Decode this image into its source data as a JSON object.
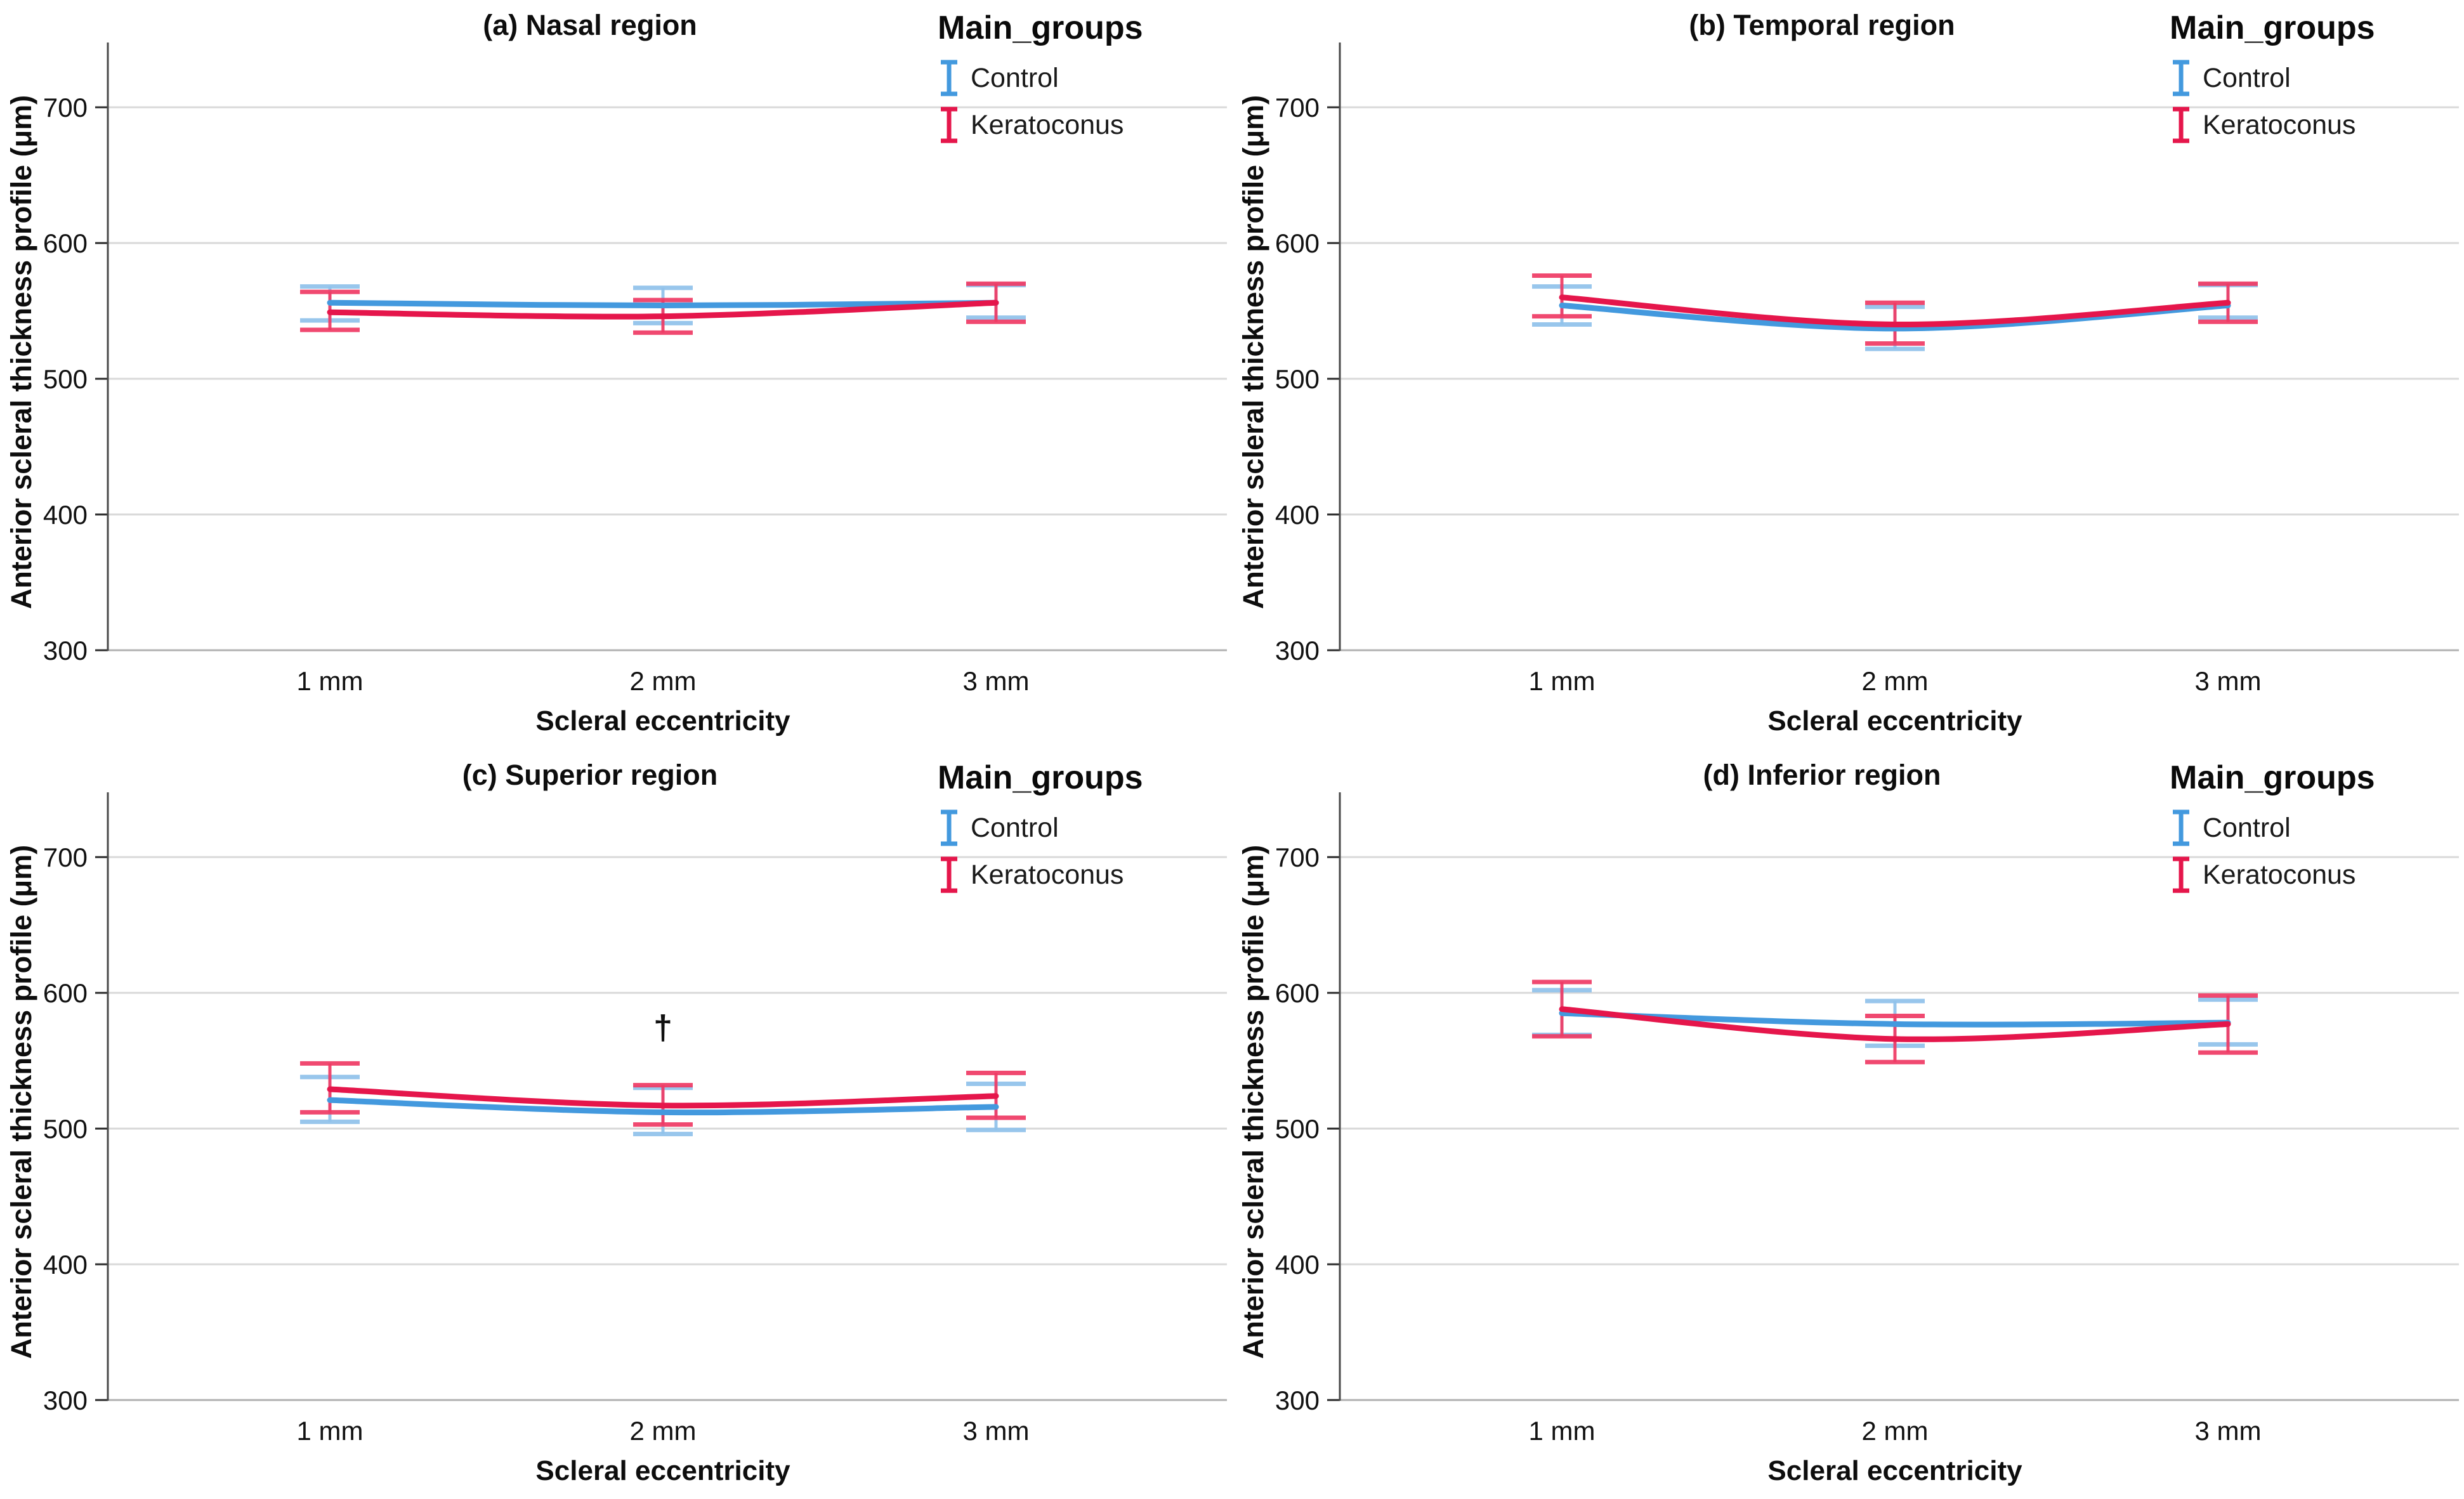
{
  "palette": {
    "control_line": "#4399de",
    "control_errorbar": "#8fc1ea",
    "keratoconus_line": "#e5164b",
    "keratoconus_errorbar": "#ef3a64",
    "grid": "#d9d9d9",
    "axis_bottom": "#b0b0b0",
    "axis_line": "#4a4a4a",
    "tick": "#2b2b2b",
    "text": "#111111"
  },
  "chart_data": [
    {
      "id": "a",
      "type": "line",
      "title": "(a) Nasal region",
      "xlabel": "Scleral eccentricity",
      "ylabel": "Anterior scleral thickness profile (μm)",
      "x_categories": [
        "1 mm",
        "2 mm",
        "3 mm"
      ],
      "yticks": [
        300,
        400,
        500,
        600,
        700
      ],
      "ylim": [
        300,
        744
      ],
      "grid": true,
      "legend_title": "Main_groups",
      "legend_position": "top-right",
      "series": [
        {
          "name": "Control",
          "values": [
            556,
            554,
            556
          ],
          "ci_low": [
            543,
            541,
            545
          ],
          "ci_high": [
            568,
            567,
            569
          ]
        },
        {
          "name": "Keratoconus",
          "values": [
            549,
            546,
            556
          ],
          "ci_low": [
            536,
            534,
            542
          ],
          "ci_high": [
            564,
            558,
            570
          ]
        }
      ],
      "annotations": []
    },
    {
      "id": "b",
      "type": "line",
      "title": "(b) Temporal region",
      "xlabel": "Scleral eccentricity",
      "ylabel": "Anterior scleral thickness profile (μm)",
      "x_categories": [
        "1 mm",
        "2 mm",
        "3 mm"
      ],
      "yticks": [
        300,
        400,
        500,
        600,
        700
      ],
      "ylim": [
        300,
        744
      ],
      "grid": true,
      "legend_title": "Main_groups",
      "legend_position": "top-right",
      "series": [
        {
          "name": "Control",
          "values": [
            554,
            537,
            554
          ],
          "ci_low": [
            540,
            522,
            545
          ],
          "ci_high": [
            568,
            553,
            569
          ]
        },
        {
          "name": "Keratoconus",
          "values": [
            560,
            540,
            556
          ],
          "ci_low": [
            546,
            526,
            542
          ],
          "ci_high": [
            576,
            556,
            570
          ]
        }
      ],
      "annotations": []
    },
    {
      "id": "c",
      "type": "line",
      "title": "(c) Superior region",
      "xlabel": "Scleral eccentricity",
      "ylabel": "Anterior scleral thickness profile (μm)",
      "x_categories": [
        "1 mm",
        "2 mm",
        "3 mm"
      ],
      "yticks": [
        300,
        400,
        500,
        600,
        700
      ],
      "ylim": [
        300,
        744
      ],
      "grid": true,
      "legend_title": "Main_groups",
      "legend_position": "top-right",
      "series": [
        {
          "name": "Control",
          "values": [
            521,
            512,
            516
          ],
          "ci_low": [
            505,
            496,
            499
          ],
          "ci_high": [
            538,
            530,
            533
          ]
        },
        {
          "name": "Keratoconus",
          "values": [
            529,
            517,
            524
          ],
          "ci_low": [
            512,
            503,
            508
          ],
          "ci_high": [
            548,
            532,
            541
          ]
        }
      ],
      "annotations": [
        {
          "text": "†",
          "x_index": 1,
          "y": 566
        }
      ]
    },
    {
      "id": "d",
      "type": "line",
      "title": "(d) Inferior region",
      "xlabel": "Scleral eccentricity",
      "ylabel": "Anterior scleral thickness profile (μm)",
      "x_categories": [
        "1 mm",
        "2 mm",
        "3 mm"
      ],
      "yticks": [
        300,
        400,
        500,
        600,
        700
      ],
      "ylim": [
        300,
        744
      ],
      "grid": true,
      "legend_title": "Main_groups",
      "legend_position": "top-right",
      "series": [
        {
          "name": "Control",
          "values": [
            585,
            577,
            578
          ],
          "ci_low": [
            569,
            561,
            562
          ],
          "ci_high": [
            602,
            594,
            595
          ]
        },
        {
          "name": "Keratoconus",
          "values": [
            588,
            566,
            577
          ],
          "ci_low": [
            568,
            549,
            556
          ],
          "ci_high": [
            608,
            583,
            598
          ]
        }
      ],
      "annotations": []
    }
  ]
}
